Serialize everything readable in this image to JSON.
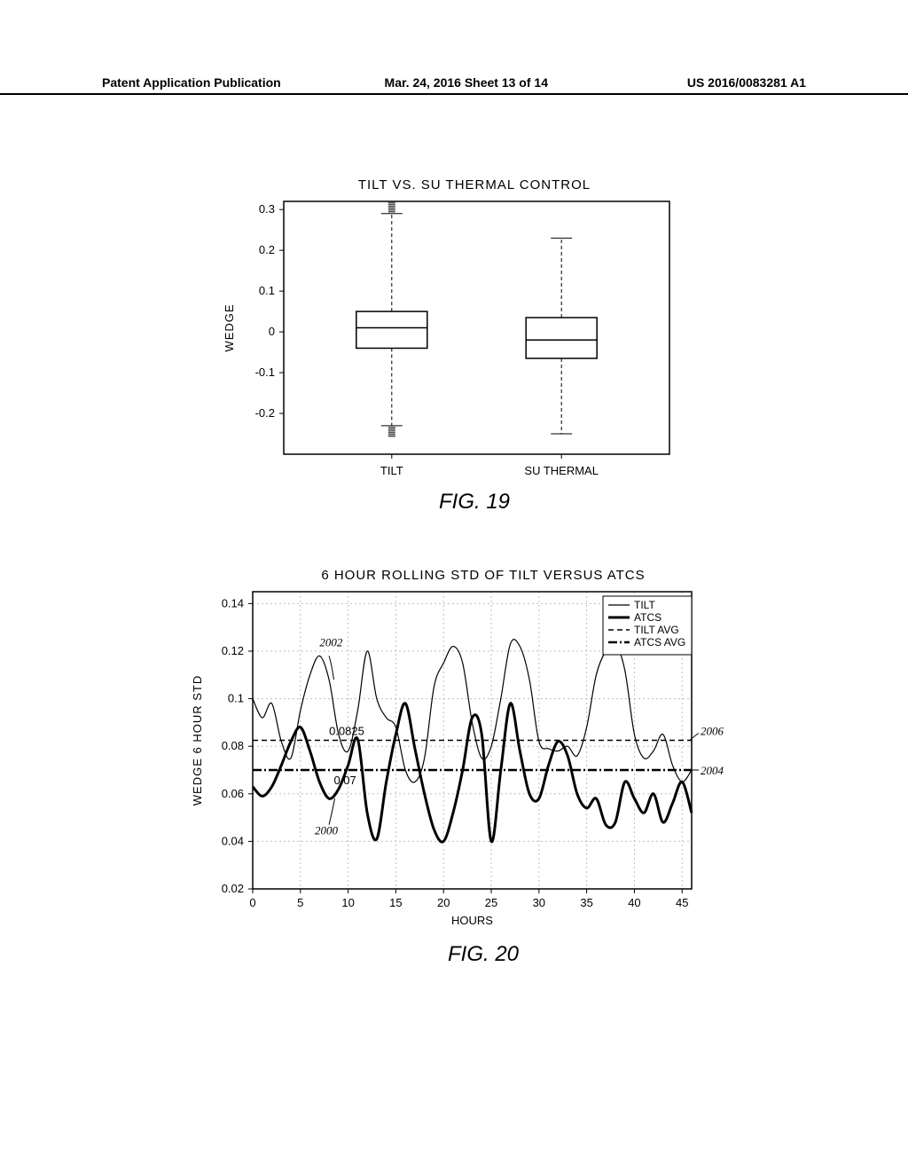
{
  "header": {
    "left": "Patent Application Publication",
    "center": "Mar. 24, 2016  Sheet 13 of 14",
    "right": "US 2016/0083281 A1"
  },
  "fig19": {
    "title": "TILT VS. SU THERMAL CONTROL",
    "ylabel": "WEDGE",
    "fig_label": "FIG. 19",
    "ylim": [
      -0.3,
      0.32
    ],
    "yticks": [
      -0.2,
      -0.1,
      0,
      0.1,
      0.2,
      0.3
    ],
    "categories": [
      "TILT",
      "SU THERMAL"
    ],
    "boxes": [
      {
        "q1": -0.04,
        "median": 0.01,
        "q3": 0.05,
        "whisker_lo": -0.23,
        "whisker_hi": 0.29,
        "outliers_lo": true,
        "outliers_hi": true
      },
      {
        "q1": -0.065,
        "median": -0.02,
        "q3": 0.035,
        "whisker_lo": -0.25,
        "whisker_hi": 0.23,
        "outliers_lo": false,
        "outliers_hi": false
      }
    ],
    "colors": {
      "box_stroke": "#000000",
      "whisker_stroke": "#000000",
      "median_stroke": "#000000",
      "bg": "#ffffff",
      "axis": "#000000"
    }
  },
  "fig20": {
    "title": "6 HOUR ROLLING STD OF TILT VERSUS ATCS",
    "ylabel": "WEDGE 6 HOUR STD",
    "xlabel": "HOURS",
    "fig_label": "FIG. 20",
    "xlim": [
      0,
      46
    ],
    "ylim": [
      0.02,
      0.145
    ],
    "xticks": [
      0,
      5,
      10,
      15,
      20,
      25,
      30,
      35,
      40,
      45
    ],
    "yticks": [
      0.02,
      0.04,
      0.06,
      0.08,
      0.1,
      0.12,
      0.14
    ],
    "grid_color": "#bfbfbf",
    "legend": [
      "TILT",
      "ATCS",
      "TILT AVG",
      "ATCS AVG"
    ],
    "tilt_avg": {
      "value": 0.0825,
      "label": "0.0825"
    },
    "atcs_avg": {
      "value": 0.07,
      "label": "0.07"
    },
    "annotations": {
      "atcs_curve_label": "2000",
      "tilt_curve_label": "2002",
      "atcs_avg_label": "2004",
      "tilt_avg_label": "2006"
    },
    "series_tilt": [
      [
        0,
        0.1
      ],
      [
        1,
        0.092
      ],
      [
        2,
        0.098
      ],
      [
        3,
        0.082
      ],
      [
        4,
        0.075
      ],
      [
        5,
        0.095
      ],
      [
        6,
        0.11
      ],
      [
        7,
        0.118
      ],
      [
        8,
        0.108
      ],
      [
        9,
        0.085
      ],
      [
        10,
        0.078
      ],
      [
        11,
        0.095
      ],
      [
        12,
        0.12
      ],
      [
        13,
        0.1
      ],
      [
        14,
        0.092
      ],
      [
        15,
        0.088
      ],
      [
        16,
        0.07
      ],
      [
        17,
        0.065
      ],
      [
        18,
        0.075
      ],
      [
        19,
        0.105
      ],
      [
        20,
        0.115
      ],
      [
        21,
        0.122
      ],
      [
        22,
        0.115
      ],
      [
        23,
        0.09
      ],
      [
        24,
        0.075
      ],
      [
        25,
        0.08
      ],
      [
        26,
        0.1
      ],
      [
        27,
        0.123
      ],
      [
        28,
        0.122
      ],
      [
        29,
        0.108
      ],
      [
        30,
        0.082
      ],
      [
        31,
        0.079
      ],
      [
        32,
        0.078
      ],
      [
        33,
        0.08
      ],
      [
        34,
        0.076
      ],
      [
        35,
        0.088
      ],
      [
        36,
        0.11
      ],
      [
        37,
        0.12
      ],
      [
        38,
        0.123
      ],
      [
        39,
        0.112
      ],
      [
        40,
        0.085
      ],
      [
        41,
        0.075
      ],
      [
        42,
        0.078
      ],
      [
        43,
        0.085
      ],
      [
        44,
        0.072
      ],
      [
        45,
        0.065
      ],
      [
        46,
        0.07
      ]
    ],
    "series_atcs": [
      [
        0,
        0.063
      ],
      [
        1,
        0.059
      ],
      [
        2,
        0.063
      ],
      [
        3,
        0.072
      ],
      [
        4,
        0.082
      ],
      [
        5,
        0.088
      ],
      [
        6,
        0.078
      ],
      [
        7,
        0.065
      ],
      [
        8,
        0.058
      ],
      [
        9,
        0.062
      ],
      [
        10,
        0.072
      ],
      [
        11,
        0.083
      ],
      [
        12,
        0.052
      ],
      [
        13,
        0.041
      ],
      [
        14,
        0.065
      ],
      [
        15,
        0.085
      ],
      [
        16,
        0.098
      ],
      [
        17,
        0.079
      ],
      [
        18,
        0.06
      ],
      [
        19,
        0.045
      ],
      [
        20,
        0.04
      ],
      [
        21,
        0.052
      ],
      [
        22,
        0.07
      ],
      [
        23,
        0.092
      ],
      [
        24,
        0.085
      ],
      [
        25,
        0.04
      ],
      [
        26,
        0.07
      ],
      [
        27,
        0.098
      ],
      [
        28,
        0.078
      ],
      [
        29,
        0.06
      ],
      [
        30,
        0.058
      ],
      [
        31,
        0.072
      ],
      [
        32,
        0.082
      ],
      [
        33,
        0.076
      ],
      [
        34,
        0.06
      ],
      [
        35,
        0.054
      ],
      [
        36,
        0.058
      ],
      [
        37,
        0.047
      ],
      [
        38,
        0.048
      ],
      [
        39,
        0.065
      ],
      [
        40,
        0.058
      ],
      [
        41,
        0.052
      ],
      [
        42,
        0.06
      ],
      [
        43,
        0.048
      ],
      [
        44,
        0.056
      ],
      [
        45,
        0.065
      ],
      [
        46,
        0.052
      ]
    ],
    "colors": {
      "tilt": "#000000",
      "atcs": "#000000",
      "tilt_avg": "#000000",
      "atcs_avg": "#000000"
    }
  }
}
